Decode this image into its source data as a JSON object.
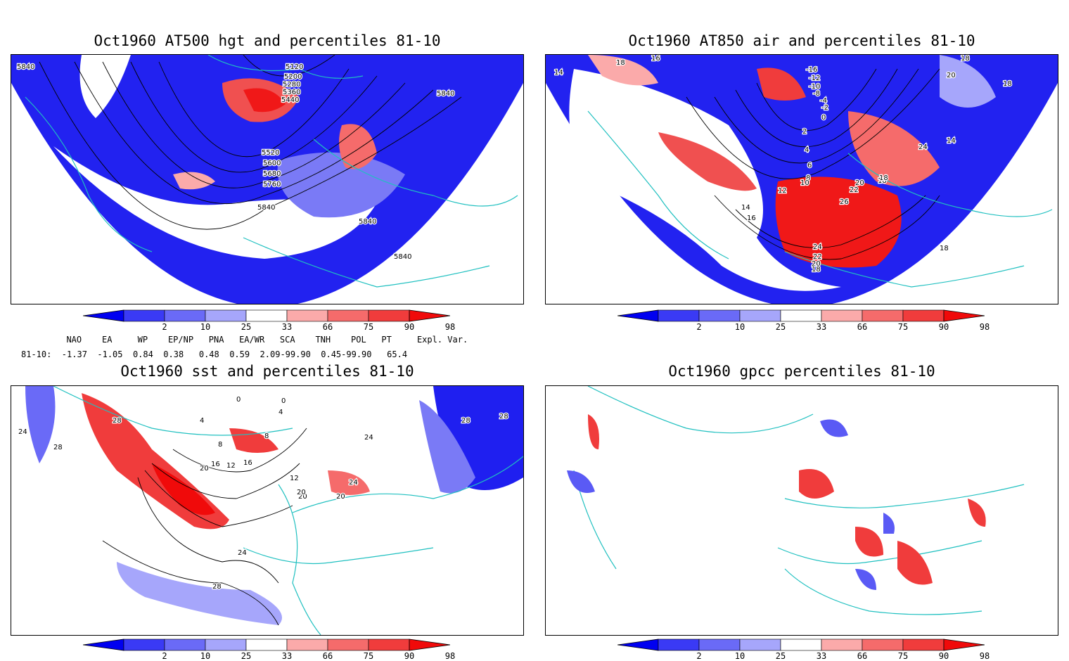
{
  "panels": [
    {
      "title": "Oct1960 AT500 hgt and percentiles 81-10",
      "contour_labels": [
        "5840",
        "5120",
        "5200",
        "5280",
        "5360",
        "5440",
        "5840",
        "5520",
        "5600",
        "5680",
        "5760",
        "5840",
        "5840",
        "5840"
      ]
    },
    {
      "title": "Oct1960 AT850 air and percentiles 81-10",
      "contour_labels": [
        "14",
        "18",
        "16",
        "18",
        "-16",
        "-12",
        "-10",
        "-8",
        "-4",
        "-2",
        "20",
        "18",
        "14",
        "0",
        "2",
        "4",
        "6",
        "8",
        "10",
        "24",
        "12",
        "14",
        "16",
        "18",
        "20",
        "22",
        "26",
        "18",
        "24",
        "22",
        "20",
        "18",
        "18"
      ]
    },
    {
      "title": "Oct1960 sst and percentiles 81-10",
      "contour_labels": [
        "24",
        "28",
        "28",
        "0",
        "0",
        "4",
        "4",
        "8",
        "8",
        "12",
        "16",
        "20",
        "16",
        "12",
        "20",
        "20",
        "28",
        "28",
        "24",
        "24",
        "20",
        "24",
        "28"
      ]
    },
    {
      "title": "Oct1960 gpcc percentiles 81-10",
      "contour_labels": []
    }
  ],
  "colorbar": {
    "ticks": [
      "2",
      "10",
      "25",
      "33",
      "66",
      "75",
      "90",
      "98"
    ],
    "colors": [
      "#0000f0",
      "#3a3af5",
      "#6a6af7",
      "#a6a6fb",
      "#ffffff",
      "#fbaaaa",
      "#f56b6b",
      "#f03c3c",
      "#f00a0a"
    ]
  },
  "indices": {
    "header_line": "  NAO    EA     WP    EP/NP   PNA   EA/WR   SCA    TNH    POL   PT     Expl. Var.",
    "values_line": "81-10:  -1.37  -1.05  0.84  0.38   0.48  0.59  2.09-99.90  0.45-99.90   65.4"
  },
  "colors": {
    "coast": "#20c0c0",
    "blue": "#1f1ff0",
    "red": "#f01a1a",
    "contour": "#000000"
  }
}
